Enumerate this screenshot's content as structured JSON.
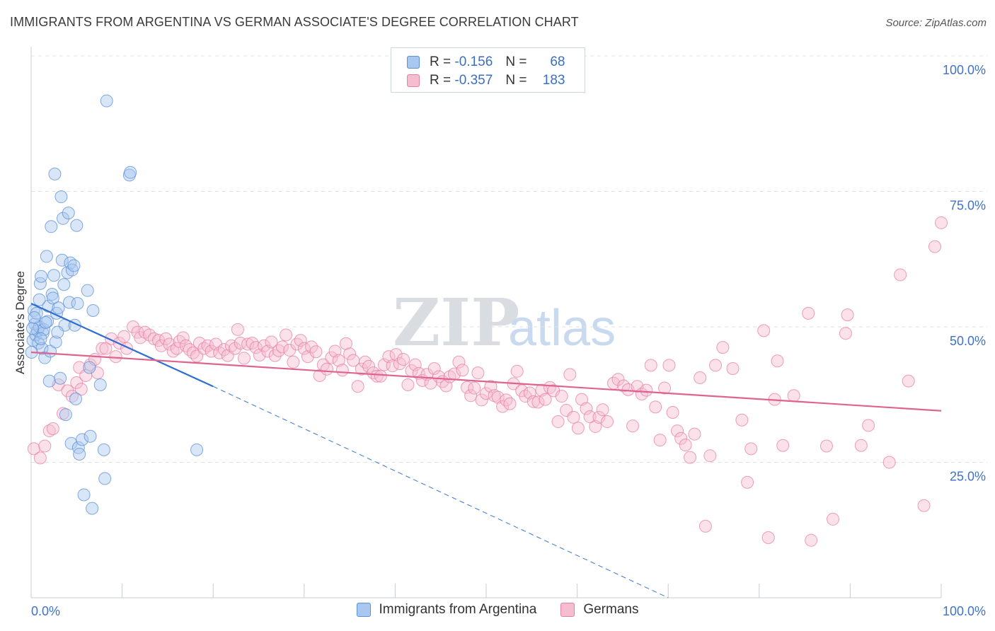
{
  "title": "IMMIGRANTS FROM ARGENTINA VS GERMAN ASSOCIATE'S DEGREE CORRELATION CHART",
  "source": "Source: ZipAtlas.com",
  "watermark": {
    "zip": "ZIP",
    "atlas": "atlas"
  },
  "legend": {
    "r_label": "R =",
    "n_label": "N =",
    "rows": [
      {
        "r": "-0.156",
        "n": "68",
        "color": "#a9c8ef",
        "border": "#5b8fd6"
      },
      {
        "r": "-0.357",
        "n": "183",
        "color": "#f6bdd0",
        "border": "#e57fa4"
      }
    ]
  },
  "bottom_legend": [
    {
      "label": "Immigrants from Argentina",
      "color": "#a9c8ef",
      "border": "#5b8fd6"
    },
    {
      "label": "Germans",
      "color": "#f6bdd0",
      "border": "#e57fa4"
    }
  ],
  "chart_data": {
    "type": "scatter",
    "xlabel": "",
    "ylabel": "Associate's Degree",
    "xlim": [
      0,
      100
    ],
    "ylim": [
      0,
      100
    ],
    "x_tick_labels": [
      "0.0%",
      "100.0%"
    ],
    "y_tick_labels": [
      "100.0%",
      "75.0%",
      "50.0%",
      "25.0%"
    ],
    "y_ticks": [
      100,
      75,
      50,
      25
    ],
    "grid": "horizontal dashed",
    "series": [
      {
        "name": "Immigrants from Argentina",
        "color": "#a9c8ef",
        "stroke": "#5b8fd6",
        "trend": {
          "x0": 0,
          "y0": 54.3,
          "x1": 20,
          "y1": 39.0,
          "dash_to_x": 70,
          "dash_to_y": 0
        },
        "points": [
          [
            0.2,
            47.5
          ],
          [
            0.3,
            53
          ],
          [
            0.4,
            50.5
          ],
          [
            0.5,
            48.5
          ],
          [
            0.6,
            52.5
          ],
          [
            0.7,
            49.3
          ],
          [
            0.8,
            47
          ],
          [
            0.9,
            50
          ],
          [
            1,
            58
          ],
          [
            1.1,
            59.3
          ],
          [
            1.2,
            46
          ],
          [
            1.3,
            48.8
          ],
          [
            1.4,
            49.5
          ],
          [
            1.5,
            44.3
          ],
          [
            1.7,
            63
          ],
          [
            1.8,
            51
          ],
          [
            1.9,
            53.8
          ],
          [
            2,
            40
          ],
          [
            2.1,
            45.5
          ],
          [
            2.2,
            68.5
          ],
          [
            2.3,
            56
          ],
          [
            2.4,
            55.3
          ],
          [
            2.5,
            59.5
          ],
          [
            2.6,
            78.2
          ],
          [
            2.7,
            47.2
          ],
          [
            2.8,
            52.5
          ],
          [
            3,
            53.5
          ],
          [
            3.2,
            40.5
          ],
          [
            3.3,
            74
          ],
          [
            3.4,
            62.3
          ],
          [
            3.5,
            70
          ],
          [
            3.6,
            57.8
          ],
          [
            3.7,
            50.3
          ],
          [
            3.8,
            33.8
          ],
          [
            4,
            60
          ],
          [
            4.1,
            71
          ],
          [
            4.2,
            54.5
          ],
          [
            4.3,
            61.8
          ],
          [
            4.4,
            28.5
          ],
          [
            4.5,
            60.5
          ],
          [
            4.7,
            61.3
          ],
          [
            4.8,
            50.3
          ],
          [
            4.9,
            36.7
          ],
          [
            5,
            68.7
          ],
          [
            5.1,
            54.3
          ],
          [
            5.2,
            27.7
          ],
          [
            5.3,
            26.5
          ],
          [
            5.6,
            29.2
          ],
          [
            5.8,
            19
          ],
          [
            6.2,
            56.7
          ],
          [
            6.4,
            42.5
          ],
          [
            6.5,
            29.8
          ],
          [
            6.7,
            16.5
          ],
          [
            6.8,
            53
          ],
          [
            7.6,
            39.3
          ],
          [
            8,
            27.3
          ],
          [
            8.1,
            22
          ],
          [
            8.3,
            91.7
          ],
          [
            10.8,
            78
          ],
          [
            10.9,
            78.5
          ],
          [
            18.2,
            27.3
          ],
          [
            0.05,
            45.3
          ],
          [
            0.15,
            49.7
          ],
          [
            0.9,
            55
          ],
          [
            1.6,
            50.8
          ],
          [
            2.9,
            49
          ],
          [
            0.35,
            51.7
          ],
          [
            1.05,
            47.8
          ]
        ]
      },
      {
        "name": "Germans",
        "color": "#f6bdd0",
        "stroke": "#e57fa4",
        "trend": {
          "x0": 0,
          "y0": 45.3,
          "x1": 100,
          "y1": 34.5
        },
        "points": [
          [
            0.3,
            27.5
          ],
          [
            1.0,
            25.8
          ],
          [
            1.5,
            28
          ],
          [
            2,
            30.8
          ],
          [
            2.4,
            31.2
          ],
          [
            3.0,
            39.3
          ],
          [
            3.5,
            34
          ],
          [
            4,
            38.2
          ],
          [
            4.5,
            37.2
          ],
          [
            5,
            39.7
          ],
          [
            5.3,
            42.5
          ],
          [
            5.5,
            38.5
          ],
          [
            6,
            41
          ],
          [
            6.5,
            43
          ],
          [
            7,
            44
          ],
          [
            7.3,
            41.5
          ],
          [
            7.8,
            46
          ],
          [
            8.2,
            46
          ],
          [
            8.8,
            47.8
          ],
          [
            9.3,
            44.5
          ],
          [
            9.7,
            47
          ],
          [
            10.2,
            48.2
          ],
          [
            10.5,
            46
          ],
          [
            11.2,
            50
          ],
          [
            11.7,
            49
          ],
          [
            12,
            48
          ],
          [
            12.5,
            49
          ],
          [
            13,
            48.5
          ],
          [
            13.5,
            47.8
          ],
          [
            14,
            47.5
          ],
          [
            14.3,
            46.5
          ],
          [
            14.8,
            47.8
          ],
          [
            15.2,
            46.8
          ],
          [
            15.6,
            45.5
          ],
          [
            16,
            46
          ],
          [
            16.3,
            47.3
          ],
          [
            16.7,
            48
          ],
          [
            17,
            46.5
          ],
          [
            17.4,
            45.8
          ],
          [
            17.8,
            45.2
          ],
          [
            18.2,
            44.6
          ],
          [
            18.5,
            47
          ],
          [
            19,
            46
          ],
          [
            19.4,
            46.5
          ],
          [
            19.8,
            45.5
          ],
          [
            20.3,
            46.8
          ],
          [
            20.7,
            45.2
          ],
          [
            21.2,
            45.8
          ],
          [
            21.6,
            44.7
          ],
          [
            22,
            46.5
          ],
          [
            22.4,
            46
          ],
          [
            22.7,
            49.5
          ],
          [
            23,
            47
          ],
          [
            23.4,
            44.2
          ],
          [
            23.8,
            46.8
          ],
          [
            24.3,
            47
          ],
          [
            24.7,
            46.2
          ],
          [
            25.1,
            44.8
          ],
          [
            25.6,
            46.5
          ],
          [
            26,
            45.5
          ],
          [
            26.4,
            47.2
          ],
          [
            26.8,
            44.7
          ],
          [
            27.2,
            45.6
          ],
          [
            27.6,
            46.3
          ],
          [
            28.0,
            48.5
          ],
          [
            28.4,
            45.7
          ],
          [
            28.8,
            43.5
          ],
          [
            29.2,
            46.8
          ],
          [
            29.6,
            47.5
          ],
          [
            30,
            46
          ],
          [
            30.4,
            44.5
          ],
          [
            30.8,
            46.3
          ],
          [
            31.3,
            45.4
          ],
          [
            31.7,
            41
          ],
          [
            32.1,
            43
          ],
          [
            32.5,
            42.2
          ],
          [
            33,
            44.3
          ],
          [
            33.4,
            45.5
          ],
          [
            33.8,
            43.8
          ],
          [
            34.2,
            42
          ],
          [
            34.6,
            46.9
          ],
          [
            35,
            45
          ],
          [
            35.4,
            43.8
          ],
          [
            35.9,
            39
          ],
          [
            36.3,
            42.2
          ],
          [
            36.7,
            43.5
          ],
          [
            37.1,
            42.7
          ],
          [
            37.6,
            41.5
          ],
          [
            38,
            40.9
          ],
          [
            38.4,
            40.9
          ],
          [
            38.8,
            43
          ],
          [
            39.3,
            44.5
          ],
          [
            39.7,
            42.8
          ],
          [
            40.1,
            44.9
          ],
          [
            40.5,
            43.2
          ],
          [
            40.9,
            44
          ],
          [
            41.4,
            39.3
          ],
          [
            41.8,
            41.9
          ],
          [
            42.2,
            43
          ],
          [
            42.6,
            41.4
          ],
          [
            43,
            40.1
          ],
          [
            43.5,
            41.2
          ],
          [
            43.9,
            39.6
          ],
          [
            44.3,
            42.3
          ],
          [
            44.8,
            40.8
          ],
          [
            45.2,
            39.9
          ],
          [
            45.6,
            39.1
          ],
          [
            46,
            40.8
          ],
          [
            46.5,
            41.3
          ],
          [
            47,
            43.5
          ],
          [
            47.4,
            42
          ],
          [
            47.9,
            38.8
          ],
          [
            48.3,
            37.3
          ],
          [
            48.7,
            38.7
          ],
          [
            49.1,
            41.5
          ],
          [
            49.5,
            36.5
          ],
          [
            50,
            37.7
          ],
          [
            50.5,
            39
          ],
          [
            50.9,
            37.3
          ],
          [
            51.3,
            37
          ],
          [
            51.8,
            35.3
          ],
          [
            52.2,
            36.5
          ],
          [
            52.6,
            35.8
          ],
          [
            53,
            39.5
          ],
          [
            53.4,
            41.8
          ],
          [
            53.9,
            38.2
          ],
          [
            54.3,
            37.2
          ],
          [
            54.8,
            37.8
          ],
          [
            55.2,
            36.2
          ],
          [
            55.7,
            36.1
          ],
          [
            56.1,
            38.3
          ],
          [
            56.5,
            36.6
          ],
          [
            57,
            38.8
          ],
          [
            57.4,
            38.2
          ],
          [
            57.9,
            32.5
          ],
          [
            58.3,
            37.2
          ],
          [
            58.8,
            34.6
          ],
          [
            59.2,
            41.2
          ],
          [
            59.6,
            33.3
          ],
          [
            60.1,
            31.3
          ],
          [
            60.5,
            36.6
          ],
          [
            61.0,
            34.9
          ],
          [
            61.4,
            33.4
          ],
          [
            62.0,
            31.6
          ],
          [
            62.4,
            33.3
          ],
          [
            62.8,
            34.7
          ],
          [
            63.3,
            32.5
          ],
          [
            64,
            39.6
          ],
          [
            64.5,
            40.3
          ],
          [
            65.1,
            39.1
          ],
          [
            65.6,
            38.4
          ],
          [
            66.1,
            31.7
          ],
          [
            66.6,
            39
          ],
          [
            67.1,
            37.6
          ],
          [
            67.6,
            38.3
          ],
          [
            68.1,
            42.9
          ],
          [
            68.6,
            35.2
          ],
          [
            69.1,
            29.1
          ],
          [
            69.6,
            38.7
          ],
          [
            70.1,
            42.9
          ],
          [
            70.5,
            34.2
          ],
          [
            71.0,
            30.8
          ],
          [
            71.4,
            29.4
          ],
          [
            71.9,
            28.2
          ],
          [
            72.4,
            25.9
          ],
          [
            72.9,
            30.2
          ],
          [
            73.5,
            40.6
          ],
          [
            74.1,
            13.2
          ],
          [
            74.6,
            26.2
          ],
          [
            75.2,
            42.9
          ],
          [
            76,
            46.2
          ],
          [
            77.1,
            42.3
          ],
          [
            78.1,
            32.8
          ],
          [
            78.7,
            21.3
          ],
          [
            79.1,
            27.5
          ],
          [
            81.0,
            11.1
          ],
          [
            81.7,
            36.6
          ],
          [
            82.0,
            43.7
          ],
          [
            83.8,
            37.3
          ],
          [
            85.4,
            52.5
          ],
          [
            85.7,
            10.6
          ],
          [
            87.4,
            28
          ],
          [
            88.1,
            14.5
          ],
          [
            89.5,
            48.8
          ],
          [
            89.7,
            52.2
          ],
          [
            91.2,
            28.1
          ],
          [
            92,
            31.8
          ],
          [
            94.3,
            25
          ],
          [
            95.5,
            59.6
          ],
          [
            96.4,
            40
          ],
          [
            98.1,
            17
          ],
          [
            99.3,
            64.8
          ],
          [
            100.0,
            69.2
          ],
          [
            80.5,
            49.3
          ],
          [
            82.6,
            28.1
          ]
        ]
      }
    ]
  }
}
